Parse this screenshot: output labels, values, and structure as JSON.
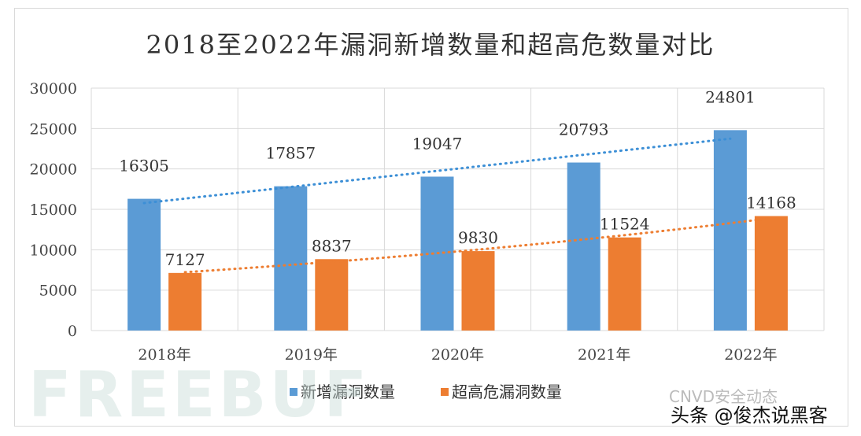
{
  "chart_data": {
    "type": "bar",
    "title": "2018至2022年漏洞新增数量和超高危数量对比",
    "categories": [
      "2018年",
      "2019年",
      "2020年",
      "2021年",
      "2022年"
    ],
    "series": [
      {
        "name": "新增漏洞数量",
        "values": [
          16305,
          17857,
          19047,
          20793,
          24801
        ],
        "color": "#5b9bd5",
        "trendline": "linear",
        "trend_color": "#3c8fd6"
      },
      {
        "name": "超高危漏洞数量",
        "values": [
          7127,
          8837,
          9830,
          11524,
          14168
        ],
        "color": "#ed7d31",
        "trendline": "exponential",
        "trend_color": "#ed7d31"
      }
    ],
    "ylim": [
      0,
      30000
    ],
    "yticks": [
      0,
      5000,
      10000,
      15000,
      20000,
      25000,
      30000
    ],
    "grid": true,
    "data_labels": true,
    "legend": "bottom"
  },
  "watermarks": [
    "FREEBUF",
    "CNVD安全动态",
    "头条 @俊杰说黑客"
  ]
}
